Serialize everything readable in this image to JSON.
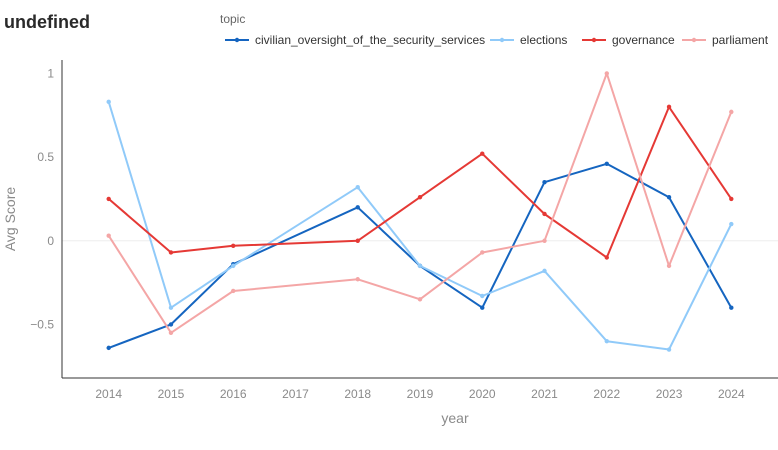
{
  "page": {
    "title": "undefined"
  },
  "chart_data": {
    "type": "line",
    "title": "undefined",
    "xlabel": "year",
    "ylabel": "Avg Score",
    "legend_title": "topic",
    "legend_position": "top",
    "x": [
      2014,
      2015,
      2016,
      2017,
      2018,
      2019,
      2020,
      2021,
      2022,
      2023,
      2024
    ],
    "xlim": [
      2013.25,
      2024.75
    ],
    "ylim": [
      -0.82,
      1.08
    ],
    "yticks": [
      -0.5,
      0,
      0.5,
      1
    ],
    "ytick_labels": [
      "−0.5",
      "0",
      "0.5",
      "1"
    ],
    "grid": false,
    "series": [
      {
        "name": "civilian_oversight_of_the_security_services",
        "color": "#1565c0",
        "points": [
          [
            2014,
            -0.64
          ],
          [
            2015,
            -0.5
          ],
          [
            2016,
            -0.14
          ],
          [
            2018,
            0.2
          ],
          [
            2019,
            -0.15
          ],
          [
            2020,
            -0.4
          ],
          [
            2021,
            0.35
          ],
          [
            2022,
            0.46
          ],
          [
            2023,
            0.26
          ],
          [
            2024,
            -0.4
          ]
        ]
      },
      {
        "name": "elections",
        "color": "#90caf9",
        "points": [
          [
            2014,
            0.83
          ],
          [
            2015,
            -0.4
          ],
          [
            2016,
            -0.15
          ],
          [
            2018,
            0.32
          ],
          [
            2019,
            -0.15
          ],
          [
            2020,
            -0.33
          ],
          [
            2021,
            -0.18
          ],
          [
            2022,
            -0.6
          ],
          [
            2023,
            -0.65
          ],
          [
            2024,
            0.1
          ]
        ]
      },
      {
        "name": "governance",
        "color": "#e53935",
        "points": [
          [
            2014,
            0.25
          ],
          [
            2015,
            -0.07
          ],
          [
            2016,
            -0.03
          ],
          [
            2018,
            0.0
          ],
          [
            2019,
            0.26
          ],
          [
            2020,
            0.52
          ],
          [
            2021,
            0.16
          ],
          [
            2022,
            -0.1
          ],
          [
            2023,
            0.8
          ],
          [
            2024,
            0.25
          ]
        ]
      },
      {
        "name": "parliament",
        "color": "#f4a6a6",
        "points": [
          [
            2014,
            0.03
          ],
          [
            2015,
            -0.55
          ],
          [
            2016,
            -0.3
          ],
          [
            2018,
            -0.23
          ],
          [
            2019,
            -0.35
          ],
          [
            2020,
            -0.07
          ],
          [
            2021,
            0.0
          ],
          [
            2022,
            1.0
          ],
          [
            2023,
            -0.15
          ],
          [
            2024,
            0.77
          ]
        ]
      }
    ]
  }
}
